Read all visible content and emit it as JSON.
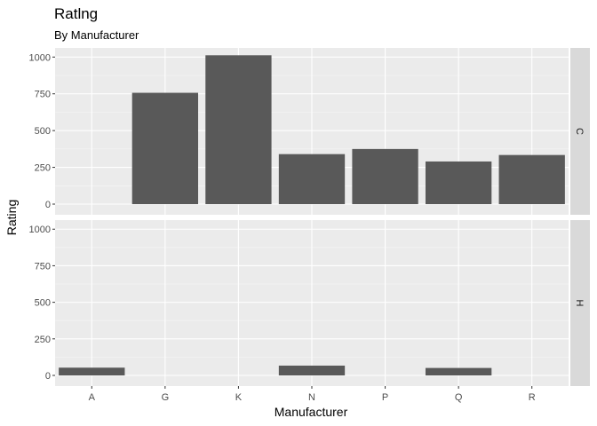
{
  "chart_data": {
    "type": "bar",
    "title": "Ratlng",
    "subtitle": "By Manufacturer",
    "xlabel": "Manufacturer",
    "ylabel": "Rating",
    "categories": [
      "A",
      "G",
      "K",
      "N",
      "P",
      "Q",
      "R"
    ],
    "ylim": [
      0,
      1050
    ],
    "yticks": [
      0,
      250,
      500,
      750,
      1000
    ],
    "facets": [
      {
        "label": "C",
        "values": [
          0,
          757,
          1012,
          340,
          375,
          290,
          334
        ]
      },
      {
        "label": "H",
        "values": [
          53,
          0,
          0,
          67,
          0,
          51,
          0
        ]
      }
    ],
    "colors": {
      "bar": "#595959",
      "panel": "#ebebeb",
      "grid_major": "#ffffff",
      "strip": "#d9d9d9"
    },
    "grid": true,
    "legend": "none"
  }
}
